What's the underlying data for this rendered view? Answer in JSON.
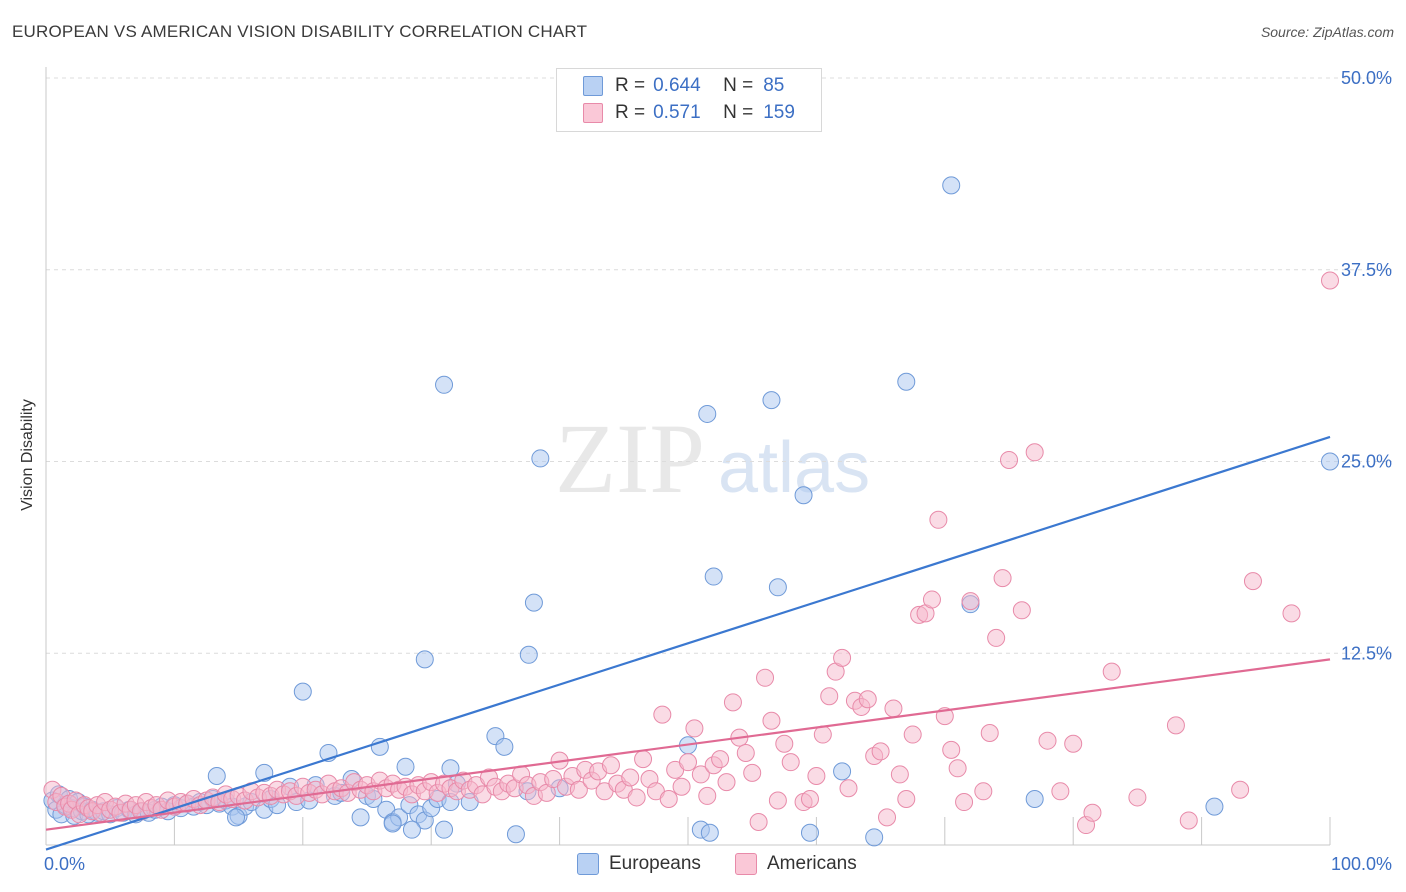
{
  "title": "EUROPEAN VS AMERICAN VISION DISABILITY CORRELATION CHART",
  "source": "Source: ZipAtlas.com",
  "watermark": {
    "zip": "ZIP",
    "atlas": "atlas"
  },
  "legend": {
    "rows": [
      {
        "r_label": "R =",
        "r_value": "0.644",
        "n_label": "N =",
        "n_value": "85",
        "color": "#a9c6ef"
      },
      {
        "r_label": "R =",
        "r_value": "0.571",
        "n_label": "N =",
        "n_value": "159",
        "color": "#f6b8cb"
      }
    ]
  },
  "bottom_legend": [
    {
      "label": "Europeans",
      "color": "#a9c6ef"
    },
    {
      "label": "Americans",
      "color": "#f6b8cb"
    }
  ],
  "chart_data": {
    "type": "scatter",
    "title": "EUROPEAN VS AMERICAN VISION DISABILITY CORRELATION CHART",
    "xlabel": "",
    "ylabel": "Vision Disability",
    "xlim": [
      0,
      100
    ],
    "ylim": [
      0,
      50
    ],
    "x_tick_labels": [
      "0.0%",
      "100.0%"
    ],
    "y_tick_labels": [
      "12.5%",
      "25.0%",
      "37.5%",
      "50.0%"
    ],
    "y_ticks": [
      12.5,
      25.0,
      37.5,
      50.0
    ],
    "grid": true,
    "legend_position": "top-center",
    "colors": {
      "europeans": "#3b78d0",
      "americans": "#e06a93"
    },
    "series": [
      {
        "name": "Europeans",
        "trend": [
          [
            0,
            -0.3
          ],
          [
            100,
            26.6
          ]
        ],
        "points": [
          [
            0.5,
            2.9
          ],
          [
            0.8,
            2.3
          ],
          [
            1.0,
            3.3
          ],
          [
            1.2,
            2.0
          ],
          [
            1.5,
            2.6
          ],
          [
            1.8,
            3.0
          ],
          [
            2.0,
            2.4
          ],
          [
            2.2,
            1.9
          ],
          [
            2.5,
            2.8
          ],
          [
            2.8,
            2.2
          ],
          [
            3.0,
            2.5
          ],
          [
            3.3,
            2.0
          ],
          [
            3.6,
            2.3
          ],
          [
            4.0,
            2.1
          ],
          [
            4.5,
            2.2
          ],
          [
            5.0,
            2.0
          ],
          [
            5.5,
            2.4
          ],
          [
            6.0,
            2.1
          ],
          [
            6.5,
            2.3
          ],
          [
            7.0,
            2.0
          ],
          [
            7.5,
            2.2
          ],
          [
            8.0,
            2.1
          ],
          [
            8.5,
            2.3
          ],
          [
            9.0,
            2.5
          ],
          [
            9.5,
            2.2
          ],
          [
            10.0,
            2.6
          ],
          [
            10.5,
            2.4
          ],
          [
            11.0,
            2.7
          ],
          [
            11.5,
            2.5
          ],
          [
            12.0,
            2.8
          ],
          [
            12.5,
            2.6
          ],
          [
            13.0,
            3.0
          ],
          [
            13.5,
            2.7
          ],
          [
            14.0,
            2.9
          ],
          [
            14.5,
            2.5
          ],
          [
            15.0,
            1.9
          ],
          [
            15.5,
            2.5
          ],
          [
            16.0,
            2.8
          ],
          [
            17.0,
            2.3
          ],
          [
            17.5,
            3.0
          ],
          [
            18.0,
            2.6
          ],
          [
            13.3,
            4.5
          ],
          [
            14.8,
            1.8
          ],
          [
            17.0,
            4.7
          ],
          [
            19.0,
            3.8
          ],
          [
            19.5,
            2.8
          ],
          [
            20.0,
            10.0
          ],
          [
            20.5,
            2.9
          ],
          [
            21.0,
            3.9
          ],
          [
            22.0,
            6.0
          ],
          [
            22.5,
            3.2
          ],
          [
            23.0,
            3.4
          ],
          [
            23.8,
            4.3
          ],
          [
            24.5,
            1.8
          ],
          [
            25.0,
            3.2
          ],
          [
            25.5,
            3.0
          ],
          [
            26.0,
            6.4
          ],
          [
            26.5,
            2.3
          ],
          [
            27.0,
            1.5
          ],
          [
            27.5,
            1.8
          ],
          [
            28.0,
            5.1
          ],
          [
            28.3,
            2.6
          ],
          [
            29.0,
            2.0
          ],
          [
            29.5,
            1.6
          ],
          [
            30.0,
            2.4
          ],
          [
            30.5,
            3.0
          ],
          [
            27.0,
            1.4
          ],
          [
            28.5,
            1.0
          ],
          [
            29.5,
            12.1
          ],
          [
            31.0,
            1.0
          ],
          [
            31.5,
            2.8
          ],
          [
            31.5,
            5.0
          ],
          [
            32.0,
            4.0
          ],
          [
            31.0,
            30.0
          ],
          [
            33.0,
            2.8
          ],
          [
            35.0,
            7.1
          ],
          [
            35.7,
            6.4
          ],
          [
            36.6,
            0.7
          ],
          [
            37.6,
            12.4
          ],
          [
            38.0,
            15.8
          ],
          [
            38.5,
            25.2
          ],
          [
            37.5,
            3.5
          ],
          [
            40.0,
            3.7
          ],
          [
            50.0,
            6.5
          ],
          [
            52.0,
            17.5
          ],
          [
            51.5,
            28.1
          ],
          [
            51.0,
            1.0
          ],
          [
            51.7,
            0.8
          ],
          [
            59.0,
            22.8
          ],
          [
            59.5,
            0.8
          ],
          [
            62.0,
            4.8
          ],
          [
            56.5,
            29.0
          ],
          [
            57.0,
            16.8
          ],
          [
            64.5,
            0.5
          ],
          [
            67.0,
            30.2
          ],
          [
            70.5,
            43.0
          ],
          [
            72.0,
            15.7
          ],
          [
            77.0,
            3.0
          ],
          [
            91.0,
            2.5
          ],
          [
            100.0,
            25.0
          ]
        ]
      },
      {
        "name": "Americans",
        "trend": [
          [
            0,
            1.0
          ],
          [
            100,
            12.1
          ]
        ],
        "points": [
          [
            0.5,
            3.6
          ],
          [
            0.8,
            2.8
          ],
          [
            1.2,
            3.2
          ],
          [
            1.5,
            2.5
          ],
          [
            1.8,
            2.7
          ],
          [
            2.0,
            2.3
          ],
          [
            2.3,
            2.9
          ],
          [
            2.6,
            2.0
          ],
          [
            3.0,
            2.6
          ],
          [
            3.3,
            2.4
          ],
          [
            3.6,
            2.2
          ],
          [
            4.0,
            2.6
          ],
          [
            4.3,
            2.1
          ],
          [
            4.6,
            2.8
          ],
          [
            5.0,
            2.3
          ],
          [
            5.4,
            2.5
          ],
          [
            5.8,
            2.1
          ],
          [
            6.2,
            2.7
          ],
          [
            6.6,
            2.3
          ],
          [
            7.0,
            2.6
          ],
          [
            7.4,
            2.2
          ],
          [
            7.8,
            2.8
          ],
          [
            8.2,
            2.4
          ],
          [
            8.6,
            2.6
          ],
          [
            9.0,
            2.3
          ],
          [
            9.5,
            2.9
          ],
          [
            10.0,
            2.5
          ],
          [
            10.5,
            2.8
          ],
          [
            11.0,
            2.7
          ],
          [
            11.5,
            3.0
          ],
          [
            12.0,
            2.6
          ],
          [
            12.5,
            2.9
          ],
          [
            13.0,
            3.1
          ],
          [
            13.5,
            2.8
          ],
          [
            14.0,
            3.3
          ],
          [
            14.5,
            3.0
          ],
          [
            15.0,
            3.2
          ],
          [
            15.5,
            2.9
          ],
          [
            16.0,
            3.5
          ],
          [
            16.5,
            3.1
          ],
          [
            17.0,
            3.4
          ],
          [
            17.5,
            3.2
          ],
          [
            18.0,
            3.6
          ],
          [
            18.5,
            3.3
          ],
          [
            19.0,
            3.5
          ],
          [
            19.5,
            3.2
          ],
          [
            20.0,
            3.8
          ],
          [
            20.5,
            3.4
          ],
          [
            21.0,
            3.6
          ],
          [
            21.5,
            3.3
          ],
          [
            22.0,
            4.0
          ],
          [
            22.5,
            3.5
          ],
          [
            23.0,
            3.7
          ],
          [
            23.5,
            3.4
          ],
          [
            24.0,
            4.1
          ],
          [
            24.5,
            3.6
          ],
          [
            25.0,
            3.9
          ],
          [
            25.5,
            3.5
          ],
          [
            26.0,
            4.2
          ],
          [
            26.5,
            3.7
          ],
          [
            27.0,
            4.0
          ],
          [
            27.5,
            3.6
          ],
          [
            28.0,
            3.8
          ],
          [
            28.5,
            3.3
          ],
          [
            29.0,
            3.9
          ],
          [
            29.5,
            3.5
          ],
          [
            30.0,
            4.1
          ],
          [
            30.5,
            3.4
          ],
          [
            31.0,
            4.0
          ],
          [
            31.5,
            3.7
          ],
          [
            32.0,
            3.5
          ],
          [
            32.5,
            4.2
          ],
          [
            33.0,
            3.6
          ],
          [
            33.5,
            3.9
          ],
          [
            34.0,
            3.3
          ],
          [
            34.5,
            4.4
          ],
          [
            35.0,
            3.8
          ],
          [
            35.5,
            3.5
          ],
          [
            36.0,
            4.0
          ],
          [
            36.5,
            3.7
          ],
          [
            37.0,
            4.6
          ],
          [
            37.5,
            3.9
          ],
          [
            38.0,
            3.2
          ],
          [
            38.5,
            4.1
          ],
          [
            39.0,
            3.4
          ],
          [
            39.5,
            4.3
          ],
          [
            40.0,
            5.5
          ],
          [
            40.5,
            3.8
          ],
          [
            41.0,
            4.5
          ],
          [
            41.5,
            3.6
          ],
          [
            42.0,
            4.9
          ],
          [
            42.5,
            4.2
          ],
          [
            43.0,
            4.8
          ],
          [
            43.5,
            3.5
          ],
          [
            44.0,
            5.2
          ],
          [
            44.5,
            4.0
          ],
          [
            45.0,
            3.6
          ],
          [
            45.5,
            4.4
          ],
          [
            46.0,
            3.1
          ],
          [
            46.5,
            5.6
          ],
          [
            47.0,
            4.3
          ],
          [
            47.5,
            3.5
          ],
          [
            48.0,
            8.5
          ],
          [
            48.5,
            3.0
          ],
          [
            49.0,
            4.9
          ],
          [
            49.5,
            3.8
          ],
          [
            50.0,
            5.4
          ],
          [
            50.5,
            7.6
          ],
          [
            51.0,
            4.6
          ],
          [
            51.5,
            3.2
          ],
          [
            52.0,
            5.2
          ],
          [
            52.5,
            5.6
          ],
          [
            53.0,
            4.1
          ],
          [
            53.5,
            9.3
          ],
          [
            54.0,
            7.0
          ],
          [
            54.5,
            6.0
          ],
          [
            55.0,
            4.7
          ],
          [
            55.5,
            1.5
          ],
          [
            56.0,
            10.9
          ],
          [
            56.5,
            8.1
          ],
          [
            57.0,
            2.9
          ],
          [
            57.5,
            6.6
          ],
          [
            58.0,
            5.4
          ],
          [
            59.0,
            2.8
          ],
          [
            59.5,
            3.0
          ],
          [
            60.0,
            4.5
          ],
          [
            60.5,
            7.2
          ],
          [
            61.0,
            9.7
          ],
          [
            61.5,
            11.3
          ],
          [
            62.0,
            12.2
          ],
          [
            62.5,
            3.7
          ],
          [
            63.0,
            9.4
          ],
          [
            63.5,
            9.0
          ],
          [
            64.0,
            9.5
          ],
          [
            64.5,
            5.8
          ],
          [
            65.0,
            6.1
          ],
          [
            65.5,
            1.8
          ],
          [
            66.0,
            8.9
          ],
          [
            66.5,
            4.6
          ],
          [
            67.0,
            3.0
          ],
          [
            67.5,
            7.2
          ],
          [
            68.0,
            15.0
          ],
          [
            68.5,
            15.1
          ],
          [
            69.0,
            16.0
          ],
          [
            69.5,
            21.2
          ],
          [
            70.0,
            8.4
          ],
          [
            70.5,
            6.2
          ],
          [
            71.0,
            5.0
          ],
          [
            71.5,
            2.8
          ],
          [
            72.0,
            15.9
          ],
          [
            73.0,
            3.5
          ],
          [
            73.5,
            7.3
          ],
          [
            74.0,
            13.5
          ],
          [
            74.5,
            17.4
          ],
          [
            75.0,
            25.1
          ],
          [
            76.0,
            15.3
          ],
          [
            77.0,
            25.6
          ],
          [
            78.0,
            6.8
          ],
          [
            79.0,
            3.5
          ],
          [
            80.0,
            6.6
          ],
          [
            81.0,
            1.3
          ],
          [
            81.5,
            2.1
          ],
          [
            83.0,
            11.3
          ],
          [
            85.0,
            3.1
          ],
          [
            88.0,
            7.8
          ],
          [
            89.0,
            1.6
          ],
          [
            93.0,
            3.6
          ],
          [
            94.0,
            17.2
          ],
          [
            97.0,
            15.1
          ],
          [
            100.0,
            36.8
          ]
        ]
      }
    ]
  }
}
